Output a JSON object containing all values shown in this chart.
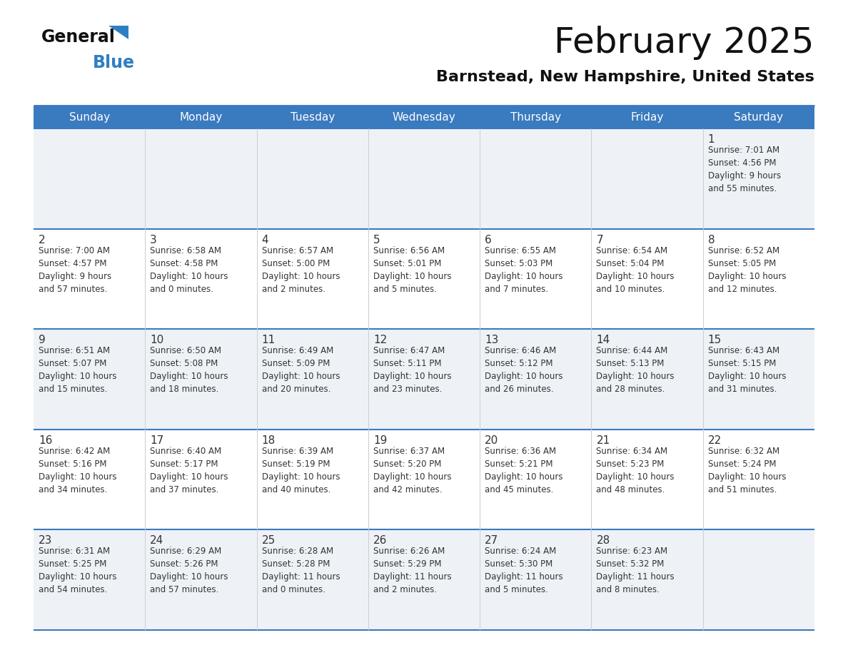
{
  "title": "February 2025",
  "subtitle": "Barnstead, New Hampshire, United States",
  "header_color": "#3a7abf",
  "header_text_color": "#ffffff",
  "day_names": [
    "Sunday",
    "Monday",
    "Tuesday",
    "Wednesday",
    "Thursday",
    "Friday",
    "Saturday"
  ],
  "bg_color": "#ffffff",
  "cell_bg_week1": "#eef2f7",
  "cell_bg_week2": "#ffffff",
  "cell_bg_week3": "#eef2f7",
  "cell_bg_week4": "#ffffff",
  "cell_bg_week5": "#eef2f7",
  "date_color": "#333333",
  "info_color": "#333333",
  "line_color": "#3a7abf",
  "logo_general_color": "#111111",
  "logo_blue_color": "#2e7fc2",
  "calendar_data": [
    [
      null,
      null,
      null,
      null,
      null,
      null,
      {
        "day": "1",
        "sunrise": "7:01 AM",
        "sunset": "4:56 PM",
        "daylight1": "9 hours",
        "daylight2": "and 55 minutes."
      }
    ],
    [
      {
        "day": "2",
        "sunrise": "7:00 AM",
        "sunset": "4:57 PM",
        "daylight1": "9 hours",
        "daylight2": "and 57 minutes."
      },
      {
        "day": "3",
        "sunrise": "6:58 AM",
        "sunset": "4:58 PM",
        "daylight1": "10 hours",
        "daylight2": "and 0 minutes."
      },
      {
        "day": "4",
        "sunrise": "6:57 AM",
        "sunset": "5:00 PM",
        "daylight1": "10 hours",
        "daylight2": "and 2 minutes."
      },
      {
        "day": "5",
        "sunrise": "6:56 AM",
        "sunset": "5:01 PM",
        "daylight1": "10 hours",
        "daylight2": "and 5 minutes."
      },
      {
        "day": "6",
        "sunrise": "6:55 AM",
        "sunset": "5:03 PM",
        "daylight1": "10 hours",
        "daylight2": "and 7 minutes."
      },
      {
        "day": "7",
        "sunrise": "6:54 AM",
        "sunset": "5:04 PM",
        "daylight1": "10 hours",
        "daylight2": "and 10 minutes."
      },
      {
        "day": "8",
        "sunrise": "6:52 AM",
        "sunset": "5:05 PM",
        "daylight1": "10 hours",
        "daylight2": "and 12 minutes."
      }
    ],
    [
      {
        "day": "9",
        "sunrise": "6:51 AM",
        "sunset": "5:07 PM",
        "daylight1": "10 hours",
        "daylight2": "and 15 minutes."
      },
      {
        "day": "10",
        "sunrise": "6:50 AM",
        "sunset": "5:08 PM",
        "daylight1": "10 hours",
        "daylight2": "and 18 minutes."
      },
      {
        "day": "11",
        "sunrise": "6:49 AM",
        "sunset": "5:09 PM",
        "daylight1": "10 hours",
        "daylight2": "and 20 minutes."
      },
      {
        "day": "12",
        "sunrise": "6:47 AM",
        "sunset": "5:11 PM",
        "daylight1": "10 hours",
        "daylight2": "and 23 minutes."
      },
      {
        "day": "13",
        "sunrise": "6:46 AM",
        "sunset": "5:12 PM",
        "daylight1": "10 hours",
        "daylight2": "and 26 minutes."
      },
      {
        "day": "14",
        "sunrise": "6:44 AM",
        "sunset": "5:13 PM",
        "daylight1": "10 hours",
        "daylight2": "and 28 minutes."
      },
      {
        "day": "15",
        "sunrise": "6:43 AM",
        "sunset": "5:15 PM",
        "daylight1": "10 hours",
        "daylight2": "and 31 minutes."
      }
    ],
    [
      {
        "day": "16",
        "sunrise": "6:42 AM",
        "sunset": "5:16 PM",
        "daylight1": "10 hours",
        "daylight2": "and 34 minutes."
      },
      {
        "day": "17",
        "sunrise": "6:40 AM",
        "sunset": "5:17 PM",
        "daylight1": "10 hours",
        "daylight2": "and 37 minutes."
      },
      {
        "day": "18",
        "sunrise": "6:39 AM",
        "sunset": "5:19 PM",
        "daylight1": "10 hours",
        "daylight2": "and 40 minutes."
      },
      {
        "day": "19",
        "sunrise": "6:37 AM",
        "sunset": "5:20 PM",
        "daylight1": "10 hours",
        "daylight2": "and 42 minutes."
      },
      {
        "day": "20",
        "sunrise": "6:36 AM",
        "sunset": "5:21 PM",
        "daylight1": "10 hours",
        "daylight2": "and 45 minutes."
      },
      {
        "day": "21",
        "sunrise": "6:34 AM",
        "sunset": "5:23 PM",
        "daylight1": "10 hours",
        "daylight2": "and 48 minutes."
      },
      {
        "day": "22",
        "sunrise": "6:32 AM",
        "sunset": "5:24 PM",
        "daylight1": "10 hours",
        "daylight2": "and 51 minutes."
      }
    ],
    [
      {
        "day": "23",
        "sunrise": "6:31 AM",
        "sunset": "5:25 PM",
        "daylight1": "10 hours",
        "daylight2": "and 54 minutes."
      },
      {
        "day": "24",
        "sunrise": "6:29 AM",
        "sunset": "5:26 PM",
        "daylight1": "10 hours",
        "daylight2": "and 57 minutes."
      },
      {
        "day": "25",
        "sunrise": "6:28 AM",
        "sunset": "5:28 PM",
        "daylight1": "11 hours",
        "daylight2": "and 0 minutes."
      },
      {
        "day": "26",
        "sunrise": "6:26 AM",
        "sunset": "5:29 PM",
        "daylight1": "11 hours",
        "daylight2": "and 2 minutes."
      },
      {
        "day": "27",
        "sunrise": "6:24 AM",
        "sunset": "5:30 PM",
        "daylight1": "11 hours",
        "daylight2": "and 5 minutes."
      },
      {
        "day": "28",
        "sunrise": "6:23 AM",
        "sunset": "5:32 PM",
        "daylight1": "11 hours",
        "daylight2": "and 8 minutes."
      },
      null
    ]
  ]
}
